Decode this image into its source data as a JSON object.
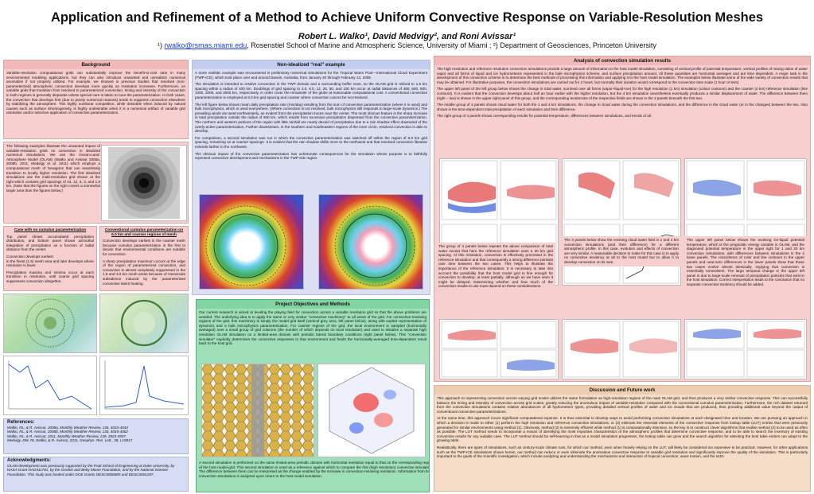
{
  "title": "Application and Refinement of a Method to Achieve Uniform Convective Response on Variable-Resolution Meshes",
  "authors": "Robert L. Walko¹, David Medvigy², and Roni Avissar¹",
  "affiliation": {
    "prefix": "¹) ",
    "email": "rwalko@rsmas.miami.edu",
    "rest": ", Rosenstiel School of Marine and Atmospheric Science, University of Miami ; ²) Department of Geosciences, Princeton University"
  },
  "background": {
    "header": "Background",
    "p1": "Variable-resolution computational grids can substantially improve the benefit-to-cost ratio in many environmental modeling applications, but they can also introduce unwanted and unrealistic numerical anomalies if not properly utilized. For example, we showed in previous studies that resolved (non-parameterized) atmospheric convection develops more quickly as resolution increases. Furthermore, on variable grids that transition from resolved to parameterized convection, timing and intensity of the convection in both regimes is generally disparate unless special care is taken to tune the parameterization. In both cases, the convection that develops first (due to purely numerical reasons) tends to suppress convection elsewhere by stabilizing the atmosphere. This highly nonlinear competition, while desirable when induced by natural causes such as surface inhomogeneity, is highly undesirable when it is a numerical artifact of variable grid resolution and/or selective application of convective parameterization.",
    "p2": "The following examples illustrate the unwanted impact of variable-resolution grids on convection in idealized numerical simulations. We use the Ocean-Land-Atmosphere Model (OLAM) (Walko and Avissar 2008a, 2008b, 2011; Medvigy et al. 2011) which employs a computational mesh of hexagons that can seamlessly transition to locally higher resolution. The first idealized simulations use the multi-resolution grid shown at the right which contains grid spacings of 24, 12, 6, 3, and 1.5 km. (Note that the figures on the right covers a somewhat larger area than the figures below.)",
    "case1_title": "Case with no cumulus parameterization",
    "case1_p1": "Top panel shows accumulated precipitation distribution, and bottom panel shows azimuthal integration of precipitation as a function of radial distance from the center.",
    "case1_p2": "Convection develops earliest",
    "case1_p3": "in the finest (1.5) mesh area and later develops where resolution is lower.",
    "case1_p4": "Precipitation maxima and minima occur at each transition in resolution, until coarse grid spacing suppresses convection altogether.",
    "case2_title": "Conventional cumulus parameterization on 6.0 km and coarser regions of mesh",
    "case2_p1": "Convection develops earliest in the coarser mesh because cumulus parameterization is the first to decide that environmental conditions are suitable for convection.",
    "case2_p2": "A sharp precipitation maximum occurs at the edge of the region of parameterized convection, and convection is almost completely suppressed in the 1.5 and 3.0 km mesh areas because of mesoscale subsidence induced by the parameterized convective latent heating."
  },
  "references": {
    "header": "References:",
    "items": [
      "Walko, RL, & R. Avissar, 2008a, Monthly Weather Review, 136, 4033-4044",
      "Walko, RL, & R. Avissar, 2008b, Monthly Weather Review, 136, 4045-4062",
      "Walko, RL, & R. Avissar, 2011, Monthly Weather Review, 139, 3923-3937.",
      "Medvigy, DM, RL Walko, & R. Avissar, 2011, Geophys. Res. Lett., 38, L15817."
    ]
  },
  "acknowledgments": {
    "header": "Acknowledgments:",
    "text": "OLAM development was previously supported by the Pratt School of Engineering at Duke University, by NASA Grant NAG511781, by the Gordon and Betty Moore Foundation, and by the National Science Foundation. This study was funded under DOE Grants DESC0006805 and DESC0001287."
  },
  "nonideal": {
    "header": "Non-idealized “real” example",
    "p1": "A more realistic example was encountered in preliminary numerical simulations for the Tropical Warm Pool—International Cloud Experiment (TWP-ICE), which took place over and around Darwin, Australia, from January 20 through February 13, 2006.",
    "p2": "The simulation is intended to resolve convection in the TWP domain and a surrounding buffer zone, so the OLAM grid is refined to 1.5 km spacing within a radius of 400 km. Doublings of grid spacing to 3.0, 6.0, 12, 25, 50, and 100 km occur at radial distances of 480, 600, 800, 1000, 2000, and 3000 km, respectively, in order cover the remainder of the globe at reasonable computational cost. A conventional convective parameterization is employed at 6.0 km grid spacing and coarser where convection cannot be not resolved.",
    "p3": "The left figure below shows mean daily precipitation rate (mm/day) resulting from the sum of convective parameterization (where it is used) and bulk microphysics, which is used everywhere. (Where convection is not resolved, bulk microphysics still responds to large-scale dynamics.) The prevailing winds are west-northwesterly, as evident from the precipitation traces near the center. The most obvious feature is the sharp increase in total precipitation outside the radius of 600 km, which results from excessive precipitation dispensed from the convective parameterization. The northern and western portions of the region with little rainfall are nearly devoid of precipitation due to a rain shadow effect downwind of the overly-active parameterization. Further downstream, in the southern and southeastern regions of the inner circle, resolved convection is able to develop.",
    "p4": "For comparison, a second simulation was run in which the convective parameterization was switched off within the region of 6.0 km grid spacing, remaining on at coarser spacings. It is evident that the rain shadow shifts more to the northwest and that resolved convection likewise extends farther to the northwest.",
    "p5": "The obvious impact of the convective parameterization has unfortunate consequences for the simulation whose purpose is to faithfully represent convective development and mechanisms in the TWP-ICE region."
  },
  "objectives": {
    "header": "Project Objectives and Methods",
    "p1": "Our current research is aimed at leveling the playing field for convection across a variable resolution grid so that the above problems are avoided. The underlying idea is to apply the same or very similar \"convective machinery\" to all areas of the grid. For convective-resolving regions of the grid, this machinery is simply the model grid itself (vertical grey area, left panel below), along with explicit representation of dynamics and a bulk microphysics parameterization. For coarser regions of the grid, the local environment is sampled (horizontally averaged) over a small group of grid columns (the number of which depends on local resolution) and used to initialize a separate high resolution OLAM simulation on a limited-area domain with periodic lateral boundary conditions (right panel below). This \"convection simulator\" explicitly determines the convective responses to that environment and feeds the horizontally-averaged time-dependent result back to the host grid.",
    "caption": "A second simulation is performed on the same limited-area periodic domain with horizontal resolution equal to that on the corresponding region of the host model grid. This second simulation is used as a reference against which to compare the first (high resolution) convective simulation. The difference between them can be interpreted as the change enabled by the increase in convection-resolving resolution. Information from both convection simulations is analyzed upon return to the host model simulation."
  },
  "analysis": {
    "header": "Analysis of convection simulation results",
    "p1": "The high resolution and reference resolution convection simulations provide a large amount of information to the host model simulation, consisting of vertical profile of potential temperature, vertical profiles of mixing ratios of water vapor and all forms of liquid and ice hydrometeors represented in the bulk microphysics scheme, and surface precipitation amount. All these quantities are horizontal averages and are time dependent. A major task in the development of this convection scheme is to determine the best methods of processing this information and applying it to the host model simulation. The examples below illustrate some of the wide variety of convection results that may be obtained. For illustrative purposes, the convection simulations are carried out for 2 hours, but normally their duration would correspond to the convection time scale (1 hour or less).",
    "p2": "The upper left panel of the left group below shows the change in total water, summed over all forms (vapor+liquid+ice) for the high resolution (1 km) simulation (colour contours) and the coarser (4 km) reference simulation (line contours). It is evident that the convection develops about half an hour earlier with the higher resolution, but the 4 km simulation nevertheless eventually produces a similar displacement of water. The difference between them (right – low) is shown in the upper right panel of this group, and the corresponding tendencies of the respective fields are shown in the 2 panels beneath the first two.",
    "p3": "The middle group of 4 panels shows cloud water for both the 1 and 4 km simulations, the change in cloud water during the convection simulations, and the difference in the cloud water (or in the changes) between the two. Also shown is the time-dependent total precipitation of each simulation and their difference.",
    "p4": "The right group of 4 panels shows corresponding results for potential temperature, differences between simulations, and trends of all.",
    "c1": "The group of 4 panels below repeats the above comparison of total water except that here the reference simulation uses a 20 km grid spacing. At this resolution, convection is effectively prevented in the reference simulation and that consequently a strong difference persists over time between the two cases. This helps to illustrate the importance of the reference simulation: It is necessary to take into account the possibility that the host model grid is fine enough for convection to develop, at least partially, although as we have seen it might be delayed. Determining whether and how much of the convection results to use must depend on these considerations.",
    "c2": "The 3 panels below show the evolving cloud water field in 1 and 4 km convection simulations (and their difference) for a different atmospheric profile. In this case, evolution and effects of convection are very similar. A reasonable decision to make for this case is to apply no convective tendency at all to the host model but to allow it to develop convection on its own.",
    "c3": "The upper left panel below shows the evolving ice-liquid potential temperature, which is the prognostic energy variable in OLAM, and the diagnosed potential temperature in the upper right for 1 and 20 km convection simulations, with differences between simulations in the 2 lower panels. The coincidence of color and line contours in the upper panels and near-zero differences in the lower panels show that these two cases evolve almost identically, implying that convection is essentially nonexistent. The large temporal change in the upper left panel is due to large-scale removal of precipitation particles that exist in the host simulation. Correct interpretation leads to the conclusion that no separate convective tendency should be added."
  },
  "discussion": {
    "header": "Discussion and Future work",
    "p1": "This approach to representing convection across varying grid scales utilizes the same formulation as high-resolution regions of the main OLAM grid, and thus produces a very similar convective response. This can successfully balance the timing and intensity of convection across grid scales, greatly reducing the anomalous impact of variable-resolution compared with the conventional cumulus parameterization. Furthermore, the rich dataset returned from the convection simulations contains relative abundances of all hydrometeor types, providing detailed vertical profiles of water and ice clouds that are produced, thus providing additional value beyond the output of conventional convective parameterizations.",
    "p2": "At the same time, this approach incurs significant computational expense. It is thus essential to develop ways to avoid performing convection simulations at each designated time and location. We are pursuing an approach in which a decision is made to either (1) perform the high resolution and reference convection simulations, or (2) estimate the essential elements of the convective response from lookup table (LUT) entries that were previously generated for similar environments using method (1). Obviously, method (2) is extremely efficient while method (1) is computationally intensive, so the key is to construct clever algorithms that enable method (2) to be used as often as possible. The LUT method needs to incorporate a means of identifying the most important characteristics of the atmospheric profiles that determine convective response, and to be able to search the inventory of existing convection results for any suitable case. The LUT method should be self-learning in that as a model simulation progresses, the lookup table can grow and the search algorithm for selecting the best table entries can adapt to the growing table.",
    "p3": "Realistically, there are types of simulations, such as century-scale climate runs, for which our method, even when heavily relying on the LUT, will likely be considered too expensive to be practical. However, for other applications such as the TWP-ICE simulations shown herein, our method can reduce or even eliminate the anomalous convective response to variable grid resolution and significantly improve the quality of the simulation. This is particularly important to the goals of the scientific investigation, which include analyzing and understanding the mechanisms and interaction of tropical convection, wave motion, and the MJO."
  },
  "colors": {
    "pink": "#f8cfcf",
    "blue": "#d5dcf4",
    "green": "#9fe0b8",
    "peach": "#f6ddc8"
  }
}
